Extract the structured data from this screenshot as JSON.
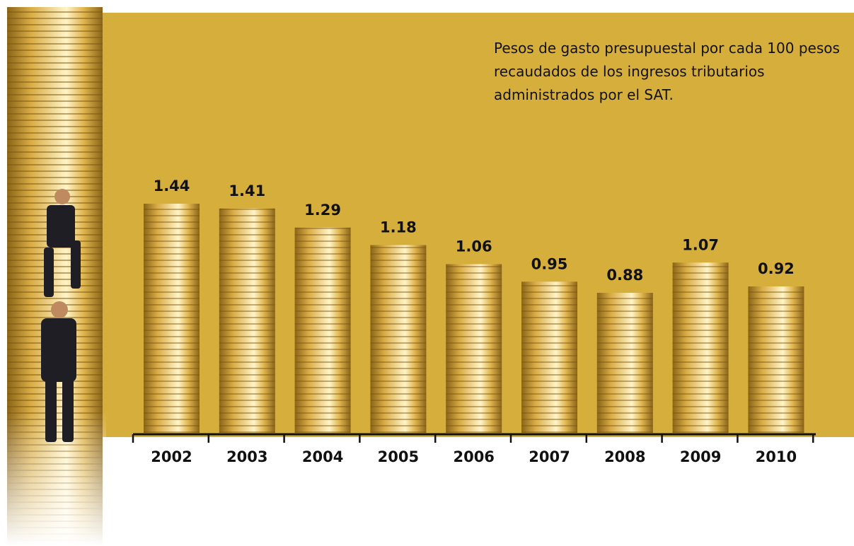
{
  "chart_data": {
    "type": "bar",
    "title": "Pesos de gasto presupuestal por cada 100 pesos recaudados de los ingresos tributarios administrados por el SAT.",
    "categories": [
      "2002",
      "2003",
      "2004",
      "2005",
      "2006",
      "2007",
      "2008",
      "2009",
      "2010"
    ],
    "values": [
      1.44,
      1.41,
      1.29,
      1.18,
      1.06,
      0.95,
      0.88,
      1.07,
      0.92
    ],
    "color": "#c9a13a"
  }
}
